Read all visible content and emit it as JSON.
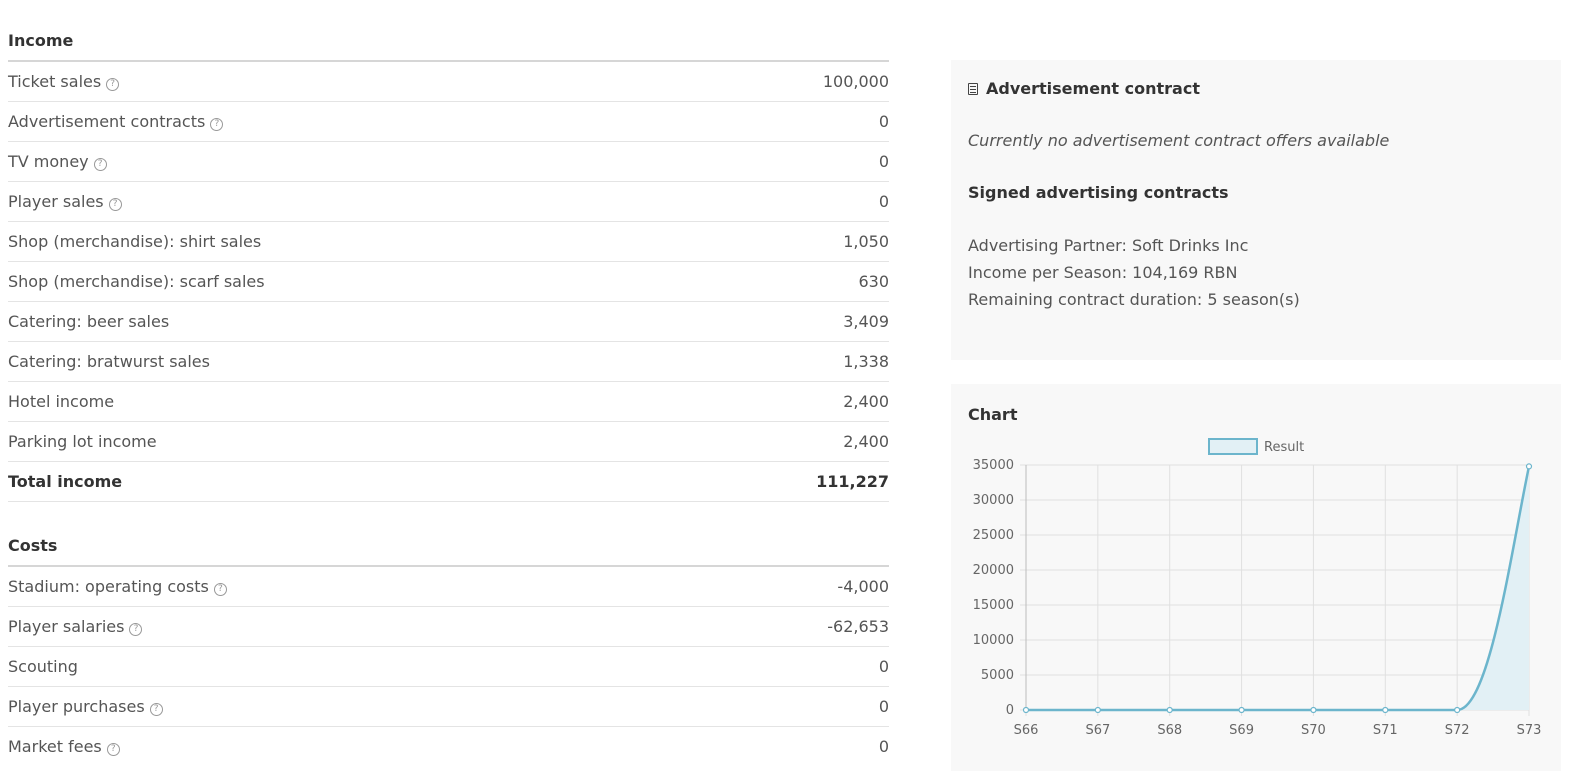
{
  "income": {
    "title": "Income",
    "rows": [
      {
        "label": "Ticket sales",
        "value": "100,000",
        "help": true
      },
      {
        "label": "Advertisement contracts",
        "value": "0",
        "help": true
      },
      {
        "label": "TV money",
        "value": "0",
        "help": true
      },
      {
        "label": "Player sales",
        "value": "0",
        "help": true
      },
      {
        "label": "Shop (merchandise): shirt sales",
        "value": "1,050",
        "help": false
      },
      {
        "label": "Shop (merchandise): scarf sales",
        "value": "630",
        "help": false
      },
      {
        "label": "Catering: beer sales",
        "value": "3,409",
        "help": false
      },
      {
        "label": "Catering: bratwurst sales",
        "value": "1,338",
        "help": false
      },
      {
        "label": "Hotel income",
        "value": "2,400",
        "help": false
      },
      {
        "label": "Parking lot income",
        "value": "2,400",
        "help": false
      }
    ],
    "total": {
      "label": "Total income",
      "value": "111,227"
    }
  },
  "costs": {
    "title": "Costs",
    "rows": [
      {
        "label": "Stadium: operating costs",
        "value": "-4,000",
        "help": true
      },
      {
        "label": "Player salaries",
        "value": "-62,653",
        "help": true
      },
      {
        "label": "Scouting",
        "value": "0",
        "help": false
      },
      {
        "label": "Player purchases",
        "value": "0",
        "help": true
      },
      {
        "label": "Market fees",
        "value": "0",
        "help": true
      }
    ]
  },
  "advertisement": {
    "title": "Advertisement contract",
    "icon": "document-icon",
    "no_offers": "Currently no advertisement contract offers available",
    "signed_title": "Signed advertising contracts",
    "partner": "Advertising Partner: Soft Drinks Inc",
    "income_per_season": "Income per Season: 104,169 RBN",
    "remaining": "Remaining contract duration: 5 season(s)"
  },
  "chart_panel": {
    "title": "Chart"
  },
  "help_icon": "question-circle-icon",
  "chart_data": {
    "type": "area",
    "categories": [
      "S66",
      "S67",
      "S68",
      "S69",
      "S70",
      "S71",
      "S72",
      "S73"
    ],
    "series": [
      {
        "name": "Result",
        "values": [
          0,
          0,
          0,
          0,
          0,
          0,
          0,
          34800
        ]
      }
    ],
    "ylim": [
      0,
      35000
    ],
    "yticks": [
      0,
      5000,
      10000,
      15000,
      20000,
      25000,
      30000,
      35000
    ],
    "grid": true,
    "legend_position": "top",
    "colors": {
      "line": "#6cb5cc",
      "fill": "#e2f0f5"
    }
  }
}
